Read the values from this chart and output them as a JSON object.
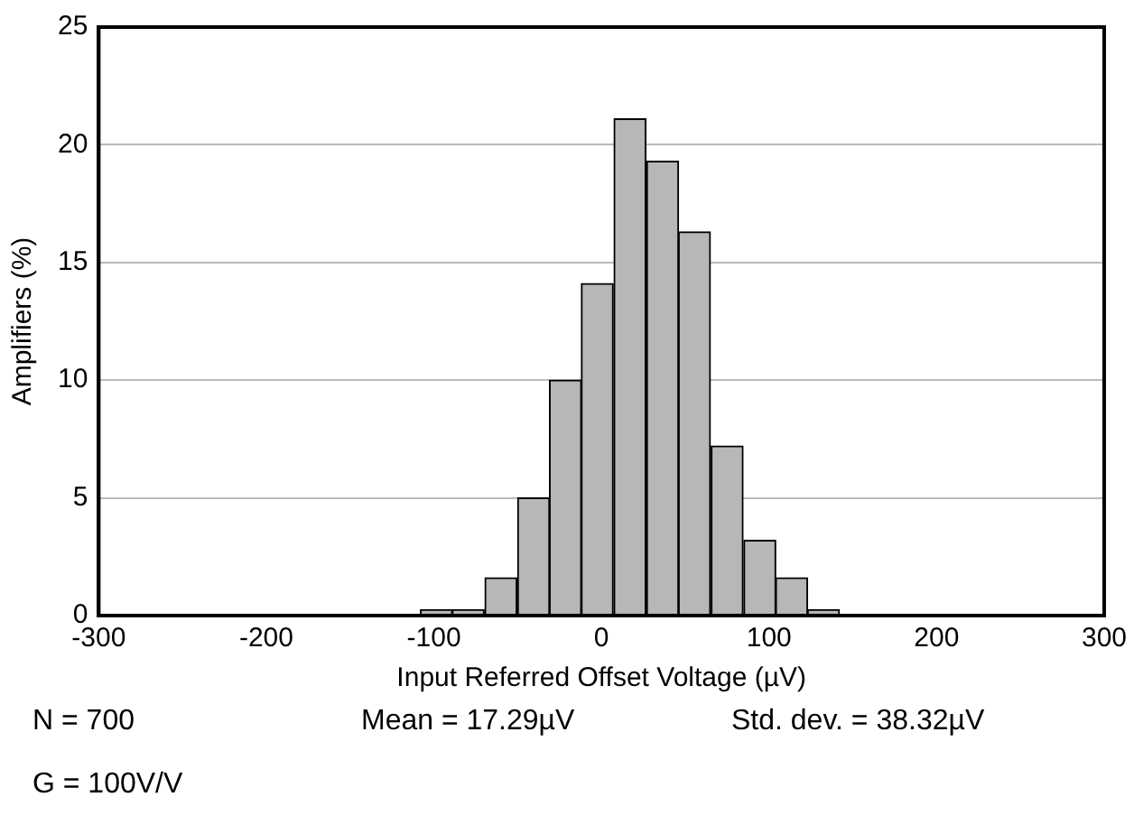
{
  "chart_data": {
    "type": "histogram",
    "xlabel": "Input Referred Offset Voltage (µV)",
    "ylabel": "Amplifiers (%)",
    "bins": [
      -108,
      -89,
      -70,
      -50,
      -31,
      -12,
      7,
      27,
      46,
      65,
      85,
      104,
      123,
      142
    ],
    "values": [
      0.25,
      0.25,
      1.6,
      5,
      10,
      14.1,
      21.1,
      19.3,
      16.3,
      7.2,
      3.2,
      1.6,
      0.25
    ],
    "color": "#b7b7b7",
    "xlim": [
      -300,
      300
    ],
    "xticks": [
      -300,
      -200,
      -100,
      0,
      100,
      200,
      300
    ],
    "ylim": [
      0,
      25
    ],
    "yticks": [
      0,
      5,
      10,
      15,
      20,
      25
    ],
    "grid": "y",
    "annotations": [
      "N = 700",
      "Mean = 17.29µV",
      "Std. dev. = 38.32µV",
      "G = 100V/V"
    ]
  }
}
